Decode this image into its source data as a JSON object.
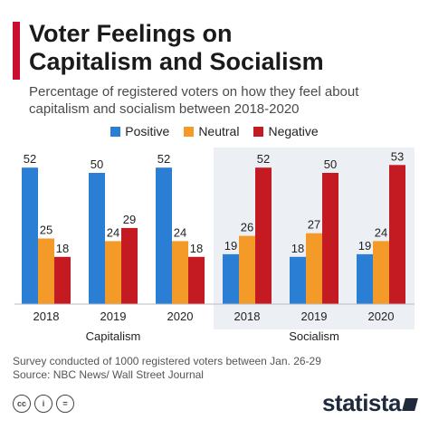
{
  "header": {
    "title_line1": "Voter Feelings on",
    "title_line2": "Capitalism and Socialism",
    "subtitle_line1": "Percentage of registered voters on how they feel about",
    "subtitle_line2": "capitalism and socialism between 2018-2020"
  },
  "colors": {
    "accent": "#c8102e",
    "positive": "#2a7fd4",
    "neutral": "#f39a29",
    "negative": "#c41b23",
    "highlight_panel": "#eceff4"
  },
  "chart_data": {
    "type": "bar",
    "groups": [
      {
        "name": "Capitalism",
        "categories": [
          "2018",
          "2019",
          "2020"
        ]
      },
      {
        "name": "Socialism",
        "categories": [
          "2018",
          "2019",
          "2020"
        ]
      }
    ],
    "series": [
      {
        "name": "Positive",
        "values": [
          [
            52,
            50,
            52
          ],
          [
            19,
            18,
            19
          ]
        ]
      },
      {
        "name": "Neutral",
        "values": [
          [
            25,
            24,
            24
          ],
          [
            26,
            27,
            24
          ]
        ]
      },
      {
        "name": "Negative",
        "values": [
          [
            18,
            29,
            18
          ],
          [
            52,
            50,
            53
          ]
        ]
      }
    ],
    "ylim": [
      0,
      55
    ],
    "legend_position": "top-center",
    "grid": false,
    "highlighted_group": "Socialism"
  },
  "footer": {
    "source_line1": "Survey conducted of 1000 registered voters between Jan. 26-29",
    "source_line2": "Source: NBC News/ Wall Street Journal",
    "license_icons": [
      "cc",
      "i",
      "="
    ],
    "logo_text": "statista"
  }
}
